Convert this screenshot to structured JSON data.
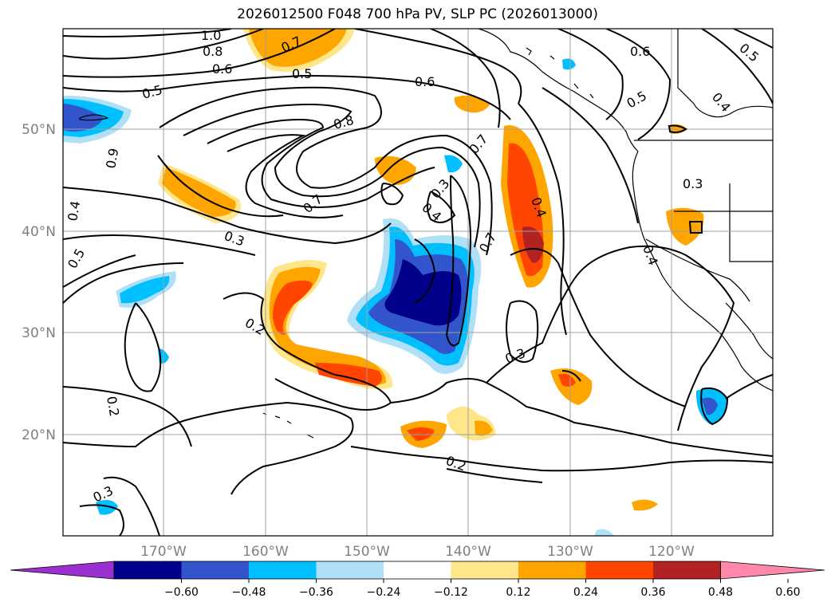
{
  "title": "2026012500 F048 700 hPa PV, SLP PC (2026013000)",
  "lat_labels": [
    "50°N",
    "40°N",
    "30°N",
    "20°N"
  ],
  "lon_labels": [
    "170°W",
    "160°W",
    "150°W",
    "140°W",
    "130°W",
    "120°W"
  ],
  "contour_labels": [
    "1.0",
    "0.8",
    "0.6",
    "0.5",
    "0.7",
    "0.5",
    "0.6",
    "0.6",
    "0.5",
    "0.5",
    "0.4",
    "0.8",
    "0.9",
    "0.4",
    "0.5",
    "0.7",
    "0.3",
    "0.4",
    "0.7",
    "0.4",
    "0.3",
    "0.3",
    "0.4",
    "0.2",
    "0.7",
    "0.3",
    "0.2",
    "0.2",
    "0.3"
  ],
  "colorbar": {
    "ticks": [
      "−0.60",
      "−0.48",
      "−0.36",
      "−0.24",
      "−0.12",
      "0.12",
      "0.24",
      "0.36",
      "0.48",
      "0.60"
    ],
    "colors": [
      "#9b30d0",
      "#00008b",
      "#3355cc",
      "#00bfff",
      "#b0e0f8",
      "#ffffff",
      "#ffe68a",
      "#ffa500",
      "#ff4500",
      "#b22222",
      "#ff88aa"
    ]
  }
}
